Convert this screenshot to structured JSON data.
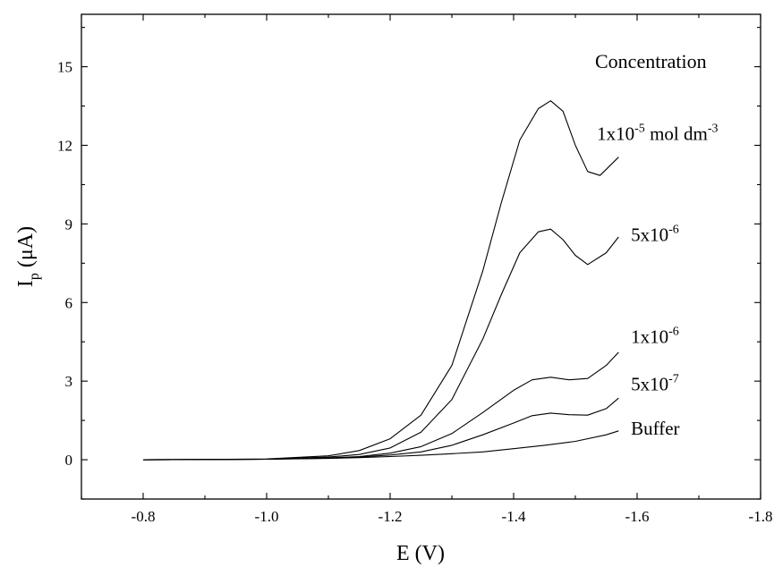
{
  "chart_data": {
    "type": "line",
    "xlabel": "E (V)",
    "ylabel_main": "I",
    "ylabel_sub": "p",
    "ylabel_unit": " (μA)",
    "xlim": [
      -0.7,
      -1.8
    ],
    "ylim": [
      -1.5,
      17
    ],
    "x_ticks": [
      -0.8,
      -1.0,
      -1.2,
      -1.4,
      -1.6,
      -1.8
    ],
    "x_tick_labels": [
      "-0.8",
      "-1.0",
      "-1.2",
      "-1.4",
      "-1.6",
      "-1.8"
    ],
    "y_ticks": [
      0,
      3,
      6,
      9,
      12,
      15
    ],
    "y_tick_labels": [
      "0",
      "3",
      "6",
      "9",
      "12",
      "15"
    ],
    "legend_title": "Concentration",
    "grid": false,
    "series": [
      {
        "id": "buffer",
        "x": [
          -0.8,
          -0.9,
          -1.0,
          -1.1,
          -1.15,
          -1.2,
          -1.25,
          -1.3,
          -1.35,
          -1.4,
          -1.45,
          -1.5,
          -1.55,
          -1.57
        ],
        "y": [
          0.0,
          0.01,
          0.02,
          0.05,
          0.08,
          0.12,
          0.17,
          0.23,
          0.3,
          0.42,
          0.55,
          0.7,
          0.95,
          1.1
        ]
      },
      {
        "id": "c5e-7",
        "x": [
          -0.8,
          -0.9,
          -1.0,
          -1.1,
          -1.15,
          -1.2,
          -1.25,
          -1.3,
          -1.35,
          -1.4,
          -1.43,
          -1.46,
          -1.49,
          -1.52,
          -1.55,
          -1.57
        ],
        "y": [
          0.0,
          0.01,
          0.02,
          0.06,
          0.1,
          0.18,
          0.3,
          0.55,
          0.95,
          1.4,
          1.68,
          1.78,
          1.72,
          1.7,
          1.95,
          2.35
        ]
      },
      {
        "id": "c1e-6",
        "x": [
          -0.8,
          -0.9,
          -1.0,
          -1.1,
          -1.15,
          -1.2,
          -1.25,
          -1.3,
          -1.35,
          -1.4,
          -1.43,
          -1.46,
          -1.49,
          -1.52,
          -1.55,
          -1.57
        ],
        "y": [
          0.0,
          0.01,
          0.02,
          0.07,
          0.12,
          0.25,
          0.5,
          1.0,
          1.8,
          2.65,
          3.05,
          3.15,
          3.05,
          3.1,
          3.6,
          4.1
        ]
      },
      {
        "id": "c5e-6",
        "x": [
          -0.8,
          -0.9,
          -1.0,
          -1.1,
          -1.15,
          -1.2,
          -1.25,
          -1.3,
          -1.35,
          -1.38,
          -1.41,
          -1.44,
          -1.46,
          -1.48,
          -1.5,
          -1.52,
          -1.55,
          -1.57
        ],
        "y": [
          0.0,
          0.01,
          0.02,
          0.1,
          0.2,
          0.45,
          1.05,
          2.3,
          4.6,
          6.3,
          7.9,
          8.7,
          8.8,
          8.4,
          7.8,
          7.45,
          7.9,
          8.5
        ]
      },
      {
        "id": "c1e-5",
        "x": [
          -0.8,
          -0.9,
          -1.0,
          -1.1,
          -1.15,
          -1.2,
          -1.25,
          -1.3,
          -1.35,
          -1.38,
          -1.41,
          -1.44,
          -1.46,
          -1.48,
          -1.5,
          -1.52,
          -1.54,
          -1.57
        ],
        "y": [
          0.0,
          0.01,
          0.03,
          0.15,
          0.35,
          0.8,
          1.7,
          3.6,
          7.2,
          9.8,
          12.2,
          13.4,
          13.7,
          13.3,
          12.0,
          11.0,
          10.85,
          11.55
        ]
      }
    ],
    "annotations": [
      {
        "id": "c1e-5",
        "base": "1x10",
        "exp": "-5",
        "rest": " mol dm",
        "rest_exp": "-3",
        "x": -1.535,
        "y": 12.2
      },
      {
        "id": "c5e-6",
        "base": "5x10",
        "exp": "-6",
        "rest": "",
        "rest_exp": "",
        "x": -1.59,
        "y": 8.35
      },
      {
        "id": "c1e-6",
        "base": "1x10",
        "exp": "-6",
        "rest": "",
        "rest_exp": "",
        "x": -1.59,
        "y": 4.45
      },
      {
        "id": "c5e-7",
        "base": "5x10",
        "exp": "-7",
        "rest": "",
        "rest_exp": "",
        "x": -1.59,
        "y": 2.65
      },
      {
        "id": "buffer",
        "base": "Buffer",
        "exp": "",
        "rest": "",
        "rest_exp": "",
        "x": -1.59,
        "y": 0.95
      }
    ]
  }
}
